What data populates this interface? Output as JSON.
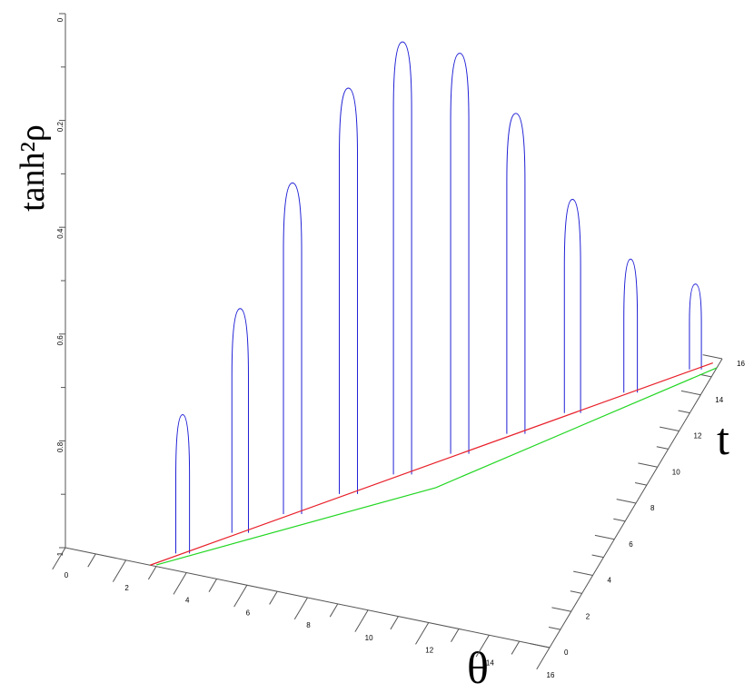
{
  "chart_data": {
    "type": "line3d",
    "zlabel": "tanh²ρ",
    "xlabel": "θ",
    "ylabel": "t",
    "xlim": [
      0,
      16
    ],
    "xticks": [
      0,
      2,
      4,
      6,
      8,
      10,
      12,
      14,
      16
    ],
    "ylim": [
      0,
      16
    ],
    "yticks": [
      0,
      2,
      4,
      6,
      8,
      10,
      12,
      14,
      16
    ],
    "zlim": [
      0,
      1
    ],
    "zticks": [
      0,
      0.2,
      0.4,
      0.6,
      0.8,
      1
    ],
    "zinverted": true,
    "series": [
      {
        "color": "#1f1fd6",
        "x": [
          3.55,
          4.88,
          6.09,
          7.38,
          8.63,
          9.95,
          11.25,
          12.55,
          13.9,
          15.4
        ],
        "y": [
          0.91,
          2.51,
          3.97,
          5.53,
          7.04,
          8.64,
          10.2,
          11.8,
          13.4,
          15.2
        ],
        "values": [
          0.74,
          0.58,
          0.38,
          0.24,
          0.19,
          0.25,
          0.4,
          0.6,
          0.75,
          0.84
        ]
      },
      {
        "color": "#e8202a",
        "x": [
          2.8,
          9.3,
          15.8
        ],
        "y": [
          0,
          7.85,
          15.7
        ],
        "values": [
          1,
          1,
          1
        ]
      },
      {
        "color": "#22d622",
        "x": [
          2.98,
          9.84,
          16
        ],
        "y": [
          0.08,
          6.73,
          15.5
        ],
        "values": [
          1,
          1,
          1
        ]
      }
    ]
  }
}
